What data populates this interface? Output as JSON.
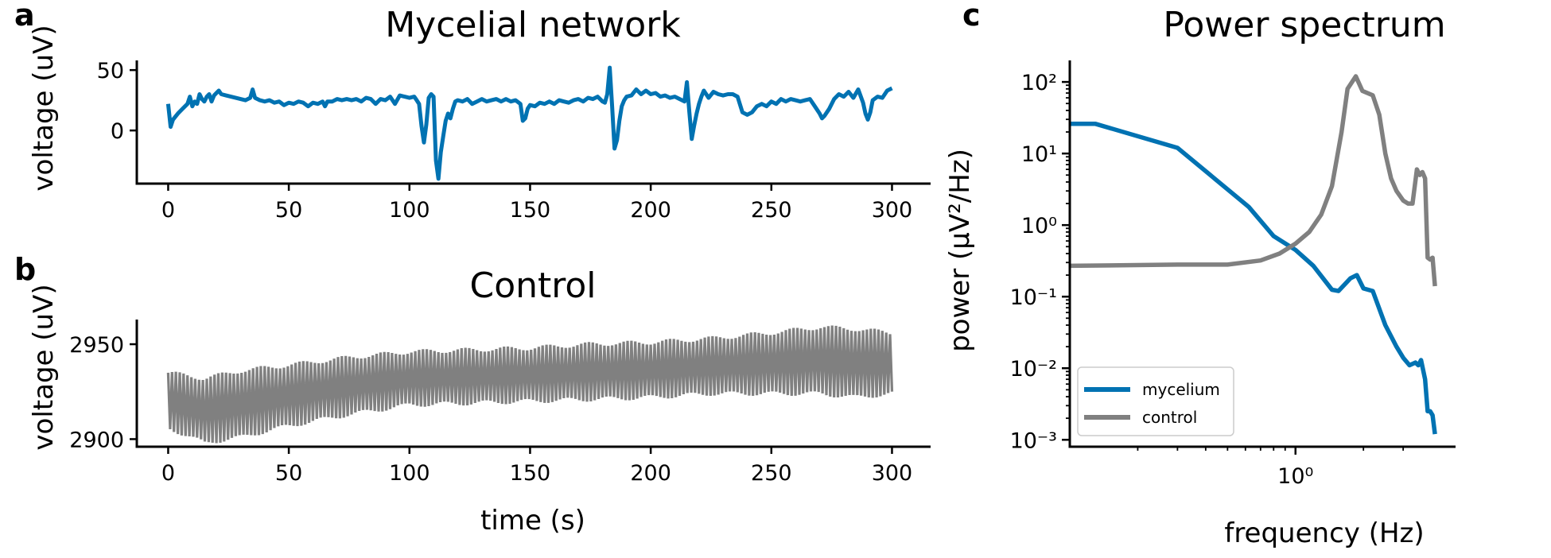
{
  "chart_data": [
    {
      "type": "line",
      "panel_label": "a",
      "title": "Mycelial network",
      "xlabel": "",
      "ylabel": "voltage (uV)",
      "xlim": [
        -13,
        316
      ],
      "ylim": [
        -44,
        58
      ],
      "xticks": [
        0,
        50,
        100,
        150,
        200,
        250,
        300
      ],
      "yticks": [
        0,
        50
      ],
      "color": "#0072B2",
      "series": [
        {
          "values": [
            [
              0,
              22
            ],
            [
              1,
              3
            ],
            [
              2,
              9
            ],
            [
              4,
              14
            ],
            [
              6,
              18
            ],
            [
              8,
              22
            ],
            [
              9,
              28
            ],
            [
              10,
              20
            ],
            [
              11,
              24
            ],
            [
              12,
              22
            ],
            [
              13,
              30
            ],
            [
              14,
              26
            ],
            [
              15,
              24
            ],
            [
              16,
              28
            ],
            [
              17,
              30
            ],
            [
              18,
              24
            ],
            [
              19,
              29
            ],
            [
              20,
              31
            ],
            [
              21,
              33
            ],
            [
              22,
              30
            ],
            [
              24,
              29
            ],
            [
              26,
              28
            ],
            [
              28,
              27
            ],
            [
              30,
              26
            ],
            [
              32,
              25
            ],
            [
              34,
              27
            ],
            [
              35,
              34
            ],
            [
              36,
              27
            ],
            [
              38,
              25
            ],
            [
              40,
              24
            ],
            [
              42,
              25
            ],
            [
              44,
              23
            ],
            [
              46,
              24
            ],
            [
              48,
              21
            ],
            [
              50,
              23
            ],
            [
              52,
              22
            ],
            [
              54,
              24
            ],
            [
              56,
              23
            ],
            [
              58,
              20
            ],
            [
              60,
              23
            ],
            [
              62,
              22
            ],
            [
              64,
              24
            ],
            [
              65,
              20
            ],
            [
              66,
              24
            ],
            [
              68,
              24
            ],
            [
              70,
              26
            ],
            [
              72,
              25
            ],
            [
              74,
              26
            ],
            [
              76,
              25
            ],
            [
              78,
              26
            ],
            [
              80,
              24
            ],
            [
              82,
              27
            ],
            [
              84,
              26
            ],
            [
              86,
              22
            ],
            [
              88,
              26
            ],
            [
              90,
              25
            ],
            [
              92,
              28
            ],
            [
              94,
              22
            ],
            [
              96,
              29
            ],
            [
              98,
              28
            ],
            [
              100,
              27
            ],
            [
              102,
              28
            ],
            [
              103,
              25
            ],
            [
              104,
              22
            ],
            [
              105,
              4
            ],
            [
              106,
              -10
            ],
            [
              107,
              5
            ],
            [
              108,
              27
            ],
            [
              109,
              30
            ],
            [
              110,
              28
            ],
            [
              111,
              -25
            ],
            [
              112,
              -40
            ],
            [
              113,
              -18
            ],
            [
              114,
              -5
            ],
            [
              115,
              8
            ],
            [
              116,
              14
            ],
            [
              117,
              10
            ],
            [
              118,
              18
            ],
            [
              119,
              24
            ],
            [
              120,
              25
            ],
            [
              122,
              24
            ],
            [
              124,
              26
            ],
            [
              126,
              22
            ],
            [
              128,
              24
            ],
            [
              130,
              26
            ],
            [
              132,
              24
            ],
            [
              134,
              25
            ],
            [
              136,
              26
            ],
            [
              138,
              24
            ],
            [
              140,
              26
            ],
            [
              142,
              24
            ],
            [
              144,
              25
            ],
            [
              146,
              22
            ],
            [
              147,
              8
            ],
            [
              148,
              10
            ],
            [
              149,
              18
            ],
            [
              150,
              21
            ],
            [
              152,
              20
            ],
            [
              154,
              23
            ],
            [
              156,
              22
            ],
            [
              158,
              24
            ],
            [
              160,
              22
            ],
            [
              162,
              25
            ],
            [
              164,
              24
            ],
            [
              166,
              23
            ],
            [
              168,
              25
            ],
            [
              170,
              26
            ],
            [
              172,
              24
            ],
            [
              174,
              27
            ],
            [
              176,
              26
            ],
            [
              178,
              28
            ],
            [
              180,
              24
            ],
            [
              181,
              23
            ],
            [
              182,
              30
            ],
            [
              183,
              52
            ],
            [
              184,
              20
            ],
            [
              185,
              -15
            ],
            [
              186,
              -8
            ],
            [
              187,
              8
            ],
            [
              188,
              20
            ],
            [
              189,
              25
            ],
            [
              190,
              28
            ],
            [
              192,
              29
            ],
            [
              194,
              34
            ],
            [
              196,
              30
            ],
            [
              198,
              33
            ],
            [
              200,
              30
            ],
            [
              202,
              31
            ],
            [
              204,
              28
            ],
            [
              206,
              29
            ],
            [
              208,
              27
            ],
            [
              210,
              28
            ],
            [
              212,
              26
            ],
            [
              214,
              24
            ],
            [
              215,
              40
            ],
            [
              216,
              15
            ],
            [
              217,
              -7
            ],
            [
              218,
              4
            ],
            [
              219,
              14
            ],
            [
              220,
              22
            ],
            [
              221,
              28
            ],
            [
              222,
              33
            ],
            [
              224,
              27
            ],
            [
              226,
              32
            ],
            [
              228,
              30
            ],
            [
              230,
              29
            ],
            [
              232,
              30
            ],
            [
              234,
              30
            ],
            [
              236,
              28
            ],
            [
              238,
              15
            ],
            [
              240,
              13
            ],
            [
              242,
              15
            ],
            [
              244,
              20
            ],
            [
              246,
              22
            ],
            [
              248,
              20
            ],
            [
              250,
              24
            ],
            [
              252,
              22
            ],
            [
              254,
              26
            ],
            [
              256,
              24
            ],
            [
              258,
              26
            ],
            [
              260,
              25
            ],
            [
              262,
              24
            ],
            [
              264,
              25
            ],
            [
              266,
              26
            ],
            [
              268,
              20
            ],
            [
              270,
              14
            ],
            [
              271,
              10
            ],
            [
              272,
              12
            ],
            [
              274,
              18
            ],
            [
              276,
              26
            ],
            [
              278,
              30
            ],
            [
              280,
              28
            ],
            [
              282,
              32
            ],
            [
              284,
              27
            ],
            [
              286,
              34
            ],
            [
              288,
              23
            ],
            [
              289,
              14
            ],
            [
              290,
              9
            ],
            [
              291,
              15
            ],
            [
              292,
              25
            ],
            [
              294,
              28
            ],
            [
              296,
              27
            ],
            [
              298,
              33
            ],
            [
              300,
              35
            ]
          ]
        }
      ]
    },
    {
      "type": "line",
      "panel_label": "b",
      "title": "Control",
      "xlabel": "time (s)",
      "ylabel": "voltage (uV)",
      "xlim": [
        -13,
        316
      ],
      "ylim": [
        2896,
        2963
      ],
      "xticks": [
        0,
        50,
        100,
        150,
        200,
        250,
        300
      ],
      "yticks": [
        2900,
        2950
      ],
      "color": "#808080",
      "series": [
        {
          "envelope": [
            [
              0,
              2906,
              2935
            ],
            [
              15,
              2898,
              2932
            ],
            [
              30,
              2901,
              2936
            ],
            [
              50,
              2907,
              2939
            ],
            [
              75,
              2913,
              2943
            ],
            [
              100,
              2918,
              2946
            ],
            [
              125,
              2919,
              2947
            ],
            [
              150,
              2920,
              2948
            ],
            [
              175,
              2921,
              2950
            ],
            [
              200,
              2922,
              2951
            ],
            [
              225,
              2924,
              2953
            ],
            [
              250,
              2924,
              2956
            ],
            [
              270,
              2924,
              2959
            ],
            [
              285,
              2922,
              2958
            ],
            [
              300,
              2924,
              2956
            ]
          ],
          "oscillation_period_s": 1.6
        }
      ]
    },
    {
      "type": "line",
      "panel_label": "c",
      "title": "Power spectrum",
      "xlabel": "frequency (Hz)",
      "ylabel": "power (μV²/Hz)",
      "xscale": "log",
      "yscale": "log",
      "xlim": [
        0.1,
        3.7
      ],
      "ylim": [
        0.0008,
        200
      ],
      "xticks": [
        1
      ],
      "xtick_labels": [
        "10⁰"
      ],
      "yticks": [
        0.001,
        0.01,
        0.1,
        1,
        10,
        100
      ],
      "ytick_labels": [
        "10⁻³",
        "10⁻²",
        "10⁻¹",
        "10⁰",
        "10¹",
        "10²"
      ],
      "legend": "bottom-left",
      "series": [
        {
          "name": "mycelium",
          "color": "#0072B2",
          "values": [
            [
              0.1,
              26
            ],
            [
              0.13,
              26
            ],
            [
              0.3,
              12
            ],
            [
              0.62,
              1.8
            ],
            [
              0.8,
              0.7
            ],
            [
              1.0,
              0.45
            ],
            [
              1.2,
              0.27
            ],
            [
              1.45,
              0.125
            ],
            [
              1.55,
              0.12
            ],
            [
              1.75,
              0.18
            ],
            [
              1.87,
              0.2
            ],
            [
              2.0,
              0.13
            ],
            [
              2.2,
              0.12
            ],
            [
              2.5,
              0.04
            ],
            [
              2.8,
              0.02
            ],
            [
              3.0,
              0.014
            ],
            [
              3.2,
              0.011
            ],
            [
              3.4,
              0.012
            ],
            [
              3.5,
              0.011
            ],
            [
              3.6,
              0.013
            ],
            [
              3.75,
              0.007
            ],
            [
              3.85,
              0.0025
            ],
            [
              3.95,
              0.0025
            ],
            [
              4.05,
              0.0022
            ],
            [
              4.15,
              0.0012
            ]
          ]
        },
        {
          "name": "control",
          "color": "#808080",
          "values": [
            [
              0.1,
              0.27
            ],
            [
              0.3,
              0.28
            ],
            [
              0.5,
              0.28
            ],
            [
              0.7,
              0.32
            ],
            [
              0.85,
              0.4
            ],
            [
              1.0,
              0.55
            ],
            [
              1.15,
              0.8
            ],
            [
              1.3,
              1.4
            ],
            [
              1.45,
              3.5
            ],
            [
              1.6,
              20
            ],
            [
              1.7,
              80
            ],
            [
              1.85,
              120
            ],
            [
              1.98,
              75
            ],
            [
              2.2,
              65
            ],
            [
              2.35,
              35
            ],
            [
              2.5,
              10
            ],
            [
              2.65,
              4.5
            ],
            [
              2.8,
              3
            ],
            [
              3.0,
              2.2
            ],
            [
              3.15,
              2.0
            ],
            [
              3.3,
              2.0
            ],
            [
              3.45,
              6
            ],
            [
              3.55,
              5
            ],
            [
              3.65,
              5.5
            ],
            [
              3.75,
              4.5
            ],
            [
              3.85,
              0.35
            ],
            [
              3.95,
              0.33
            ],
            [
              4.05,
              0.35
            ],
            [
              4.15,
              0.14
            ]
          ]
        }
      ]
    }
  ]
}
